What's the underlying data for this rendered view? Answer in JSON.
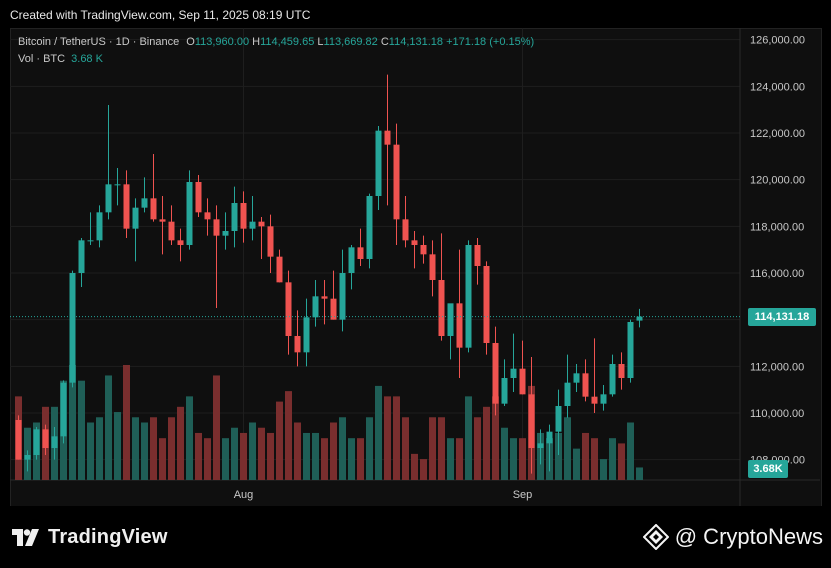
{
  "header": {
    "created_text": "Created with TradingView.com, Sep 11, 2025 08:19 UTC"
  },
  "legend": {
    "symbol": "Bitcoin / TetherUS · 1D · Binance",
    "o_label": "O",
    "o_value": "113,960.00",
    "h_label": "H",
    "h_value": "114,459.65",
    "l_label": "L",
    "l_value": "113,669.82",
    "c_label": "C",
    "c_value": "114,131.18",
    "change": "+171.18 (+0.15%)",
    "vol_label": "Vol · BTC",
    "vol_value": "3.68 K"
  },
  "price_tag": "114,131.18",
  "vol_tag": "3.68K",
  "footer": {
    "tv_brand": "TradingView",
    "cn_brand": "@ CryptoNews"
  },
  "colors": {
    "up": "#26a69a",
    "down": "#ef5350",
    "up_vol": "#1f5f57",
    "down_vol": "#7a2e2e"
  },
  "chart_data": {
    "type": "candlestick",
    "symbol": "Bitcoin / TetherUS",
    "interval": "1D",
    "exchange": "Binance",
    "y_axis": {
      "min": 107000,
      "max": 126500,
      "ticks": [
        108000,
        110000,
        112000,
        114000,
        116000,
        118000,
        120000,
        122000,
        124000,
        126000
      ],
      "tick_labels": [
        "108,000.00",
        "110,000.00",
        "112,000.00",
        "114,000.00",
        "116,000.00",
        "118,000.00",
        "120,000.00",
        "122,000.00",
        "124,000.00",
        "126,000.00"
      ]
    },
    "x_axis": {
      "labels": [
        {
          "text": "Aug",
          "index": 25
        },
        {
          "text": "Sep",
          "index": 56
        }
      ]
    },
    "current_price": 114131.18,
    "last_volume_k": 3.68,
    "candles": [
      [
        109700,
        109900,
        108000,
        108000,
        80
      ],
      [
        108000,
        108400,
        107500,
        108200,
        50
      ],
      [
        108200,
        109400,
        108000,
        109300,
        55
      ],
      [
        109300,
        109500,
        108200,
        108500,
        70
      ],
      [
        108500,
        109400,
        108000,
        109000,
        70
      ],
      [
        109000,
        111400,
        108700,
        111300,
        95
      ],
      [
        111300,
        116100,
        111100,
        116000,
        110
      ],
      [
        116000,
        117500,
        115400,
        117400,
        95
      ],
      [
        117400,
        118600,
        117200,
        117400,
        55
      ],
      [
        117400,
        118900,
        117100,
        118600,
        60
      ],
      [
        118600,
        123200,
        118300,
        119800,
        100
      ],
      [
        119800,
        120500,
        118900,
        119800,
        65
      ],
      [
        119800,
        120400,
        117500,
        117900,
        110
      ],
      [
        117900,
        119200,
        116500,
        118800,
        60
      ],
      [
        118800,
        120100,
        118600,
        119200,
        55
      ],
      [
        119200,
        121100,
        118200,
        118300,
        60
      ],
      [
        118300,
        119300,
        116800,
        118200,
        40
      ],
      [
        118200,
        118900,
        117200,
        117400,
        60
      ],
      [
        117400,
        117900,
        116500,
        117200,
        70
      ],
      [
        117200,
        120400,
        117000,
        119900,
        80
      ],
      [
        119900,
        120200,
        118400,
        118600,
        45
      ],
      [
        118600,
        119200,
        117600,
        118300,
        40
      ],
      [
        118300,
        118900,
        114500,
        117600,
        100
      ],
      [
        117600,
        118600,
        117000,
        117800,
        40
      ],
      [
        117800,
        119700,
        117100,
        119000,
        50
      ],
      [
        119000,
        119500,
        117300,
        117900,
        45
      ],
      [
        117900,
        119300,
        117400,
        118200,
        55
      ],
      [
        118200,
        118400,
        116600,
        118000,
        50
      ],
      [
        118000,
        118500,
        116000,
        116700,
        45
      ],
      [
        116700,
        117000,
        115600,
        115600,
        75
      ],
      [
        115600,
        116100,
        112500,
        113300,
        85
      ],
      [
        113300,
        114400,
        112000,
        112600,
        55
      ],
      [
        112600,
        114900,
        112000,
        114100,
        45
      ],
      [
        114100,
        115700,
        113700,
        115000,
        45
      ],
      [
        115000,
        115700,
        113800,
        114900,
        40
      ],
      [
        114900,
        116100,
        114000,
        114000,
        55
      ],
      [
        114000,
        117000,
        113500,
        116000,
        60
      ],
      [
        116000,
        117200,
        115300,
        117100,
        40
      ],
      [
        117100,
        117900,
        116300,
        116600,
        40
      ],
      [
        116600,
        119400,
        116200,
        119300,
        60
      ],
      [
        119300,
        122300,
        118700,
        122100,
        90
      ],
      [
        122100,
        124500,
        118900,
        121500,
        80
      ],
      [
        121500,
        122400,
        117200,
        118300,
        80
      ],
      [
        118300,
        119300,
        117100,
        117400,
        60
      ],
      [
        117400,
        117800,
        116200,
        117200,
        25
      ],
      [
        117200,
        117600,
        116400,
        116800,
        20
      ],
      [
        116800,
        117400,
        115000,
        115700,
        60
      ],
      [
        115700,
        117700,
        113100,
        113300,
        60
      ],
      [
        113300,
        114600,
        112300,
        114700,
        40
      ],
      [
        114700,
        117000,
        111500,
        112800,
        40
      ],
      [
        112800,
        117400,
        112600,
        117200,
        80
      ],
      [
        117200,
        117500,
        115500,
        116300,
        60
      ],
      [
        116300,
        116500,
        112500,
        113000,
        70
      ],
      [
        113000,
        113700,
        109900,
        110400,
        80
      ],
      [
        110400,
        112300,
        110300,
        111500,
        50
      ],
      [
        111500,
        113400,
        110900,
        111900,
        40
      ],
      [
        111900,
        113100,
        110800,
        110800,
        40
      ],
      [
        110800,
        112400,
        107400,
        108500,
        90
      ],
      [
        108500,
        109300,
        107800,
        108700,
        45
      ],
      [
        108700,
        109500,
        107500,
        109200,
        40
      ],
      [
        109200,
        111000,
        108200,
        110300,
        45
      ],
      [
        110300,
        112500,
        109800,
        111300,
        60
      ],
      [
        111300,
        112100,
        110900,
        111700,
        30
      ],
      [
        111700,
        112300,
        110500,
        110700,
        45
      ],
      [
        110700,
        113200,
        110000,
        110400,
        40
      ],
      [
        110400,
        111200,
        110100,
        110800,
        20
      ],
      [
        110800,
        112500,
        110700,
        112100,
        40
      ],
      [
        112100,
        112600,
        111000,
        111500,
        35
      ],
      [
        111500,
        114000,
        111300,
        113900,
        55
      ],
      [
        113960,
        114460,
        113670,
        114131,
        12
      ]
    ]
  }
}
